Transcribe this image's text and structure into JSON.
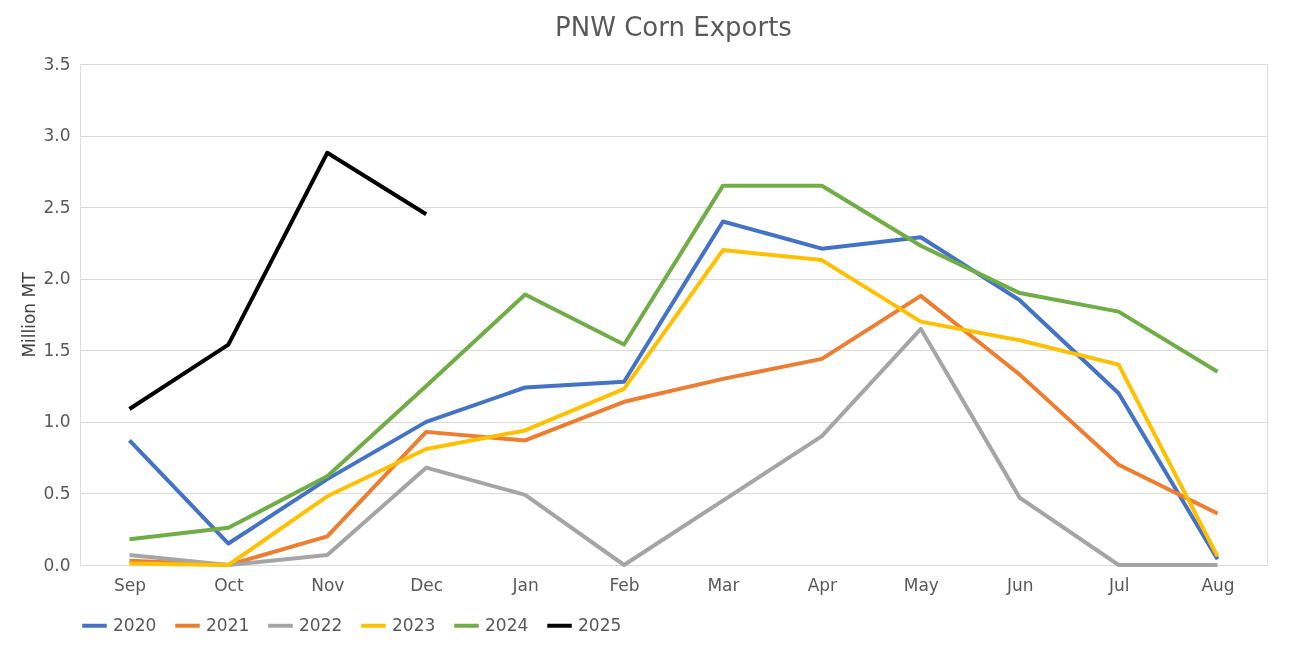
{
  "chart_data": {
    "type": "line",
    "title": "PNW Corn Exports",
    "ylabel": "Million MT",
    "categories": [
      "Sep",
      "Oct",
      "Nov",
      "Dec",
      "Jan",
      "Feb",
      "Mar",
      "Apr",
      "May",
      "Jun",
      "Jul",
      "Aug"
    ],
    "series": [
      {
        "name": "2020",
        "color": "#4472c4",
        "values": [
          0.87,
          0.15,
          0.6,
          1.0,
          1.24,
          1.28,
          2.4,
          2.21,
          2.29,
          1.85,
          1.2,
          0.04
        ]
      },
      {
        "name": "2021",
        "color": "#ed7d31",
        "values": [
          0.03,
          0,
          0.2,
          0.93,
          0.87,
          1.14,
          1.3,
          1.44,
          1.88,
          1.33,
          0.7,
          0.36
        ]
      },
      {
        "name": "2022",
        "color": "#a5a5a5",
        "values": [
          0.07,
          0,
          0.07,
          0.68,
          0.49,
          0,
          0.45,
          0.9,
          1.65,
          0.47,
          0,
          0
        ]
      },
      {
        "name": "2023",
        "color": "#ffc000",
        "values": [
          0.01,
          0,
          0.48,
          0.81,
          0.94,
          1.23,
          2.2,
          2.13,
          1.7,
          1.57,
          1.4,
          0.06
        ]
      },
      {
        "name": "2024",
        "color": "#70ad47",
        "values": [
          0.18,
          0.26,
          0.62,
          1.25,
          1.89,
          1.54,
          2.65,
          2.65,
          2.23,
          1.9,
          1.77,
          1.35
        ]
      },
      {
        "name": "2025",
        "color": "#000000",
        "values": [
          1.09,
          1.54,
          2.88,
          2.45,
          null,
          null,
          null,
          null,
          null,
          null,
          null,
          null
        ]
      }
    ],
    "ylim": [
      0,
      3.5
    ],
    "yticks": [
      {
        "value": 0,
        "label": "0.0"
      },
      {
        "value": 0.5,
        "label": "0.5"
      },
      {
        "value": 1,
        "label": "1.0"
      },
      {
        "value": 1.5,
        "label": "1.5"
      },
      {
        "value": 2,
        "label": "2.0"
      },
      {
        "value": 2.5,
        "label": "2.5"
      },
      {
        "value": 3,
        "label": "3.0"
      },
      {
        "value": 3.5,
        "label": "3.5"
      }
    ],
    "grid": "y",
    "legend": "bottom",
    "marker": "none",
    "line_style": "solid"
  }
}
